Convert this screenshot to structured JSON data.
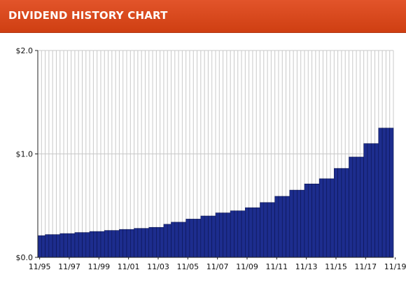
{
  "header": {
    "title": "DIVIDEND HISTORY CHART"
  },
  "colors": {
    "header": "#d9461a",
    "bar": "#1d2d8e",
    "bar_edge": "#0b1450",
    "grid": "#c8c8c8",
    "axis": "#222222"
  },
  "chart_data": {
    "type": "bar",
    "title": "",
    "xlabel": "",
    "ylabel": "",
    "ylim": [
      0,
      2.0
    ],
    "grid": true,
    "y_ticks": [
      "$2.0",
      "$1.0",
      "$0.0"
    ],
    "y_tick_values": [
      2.0,
      1.0,
      0.0
    ],
    "x_ticks": [
      "11/95",
      "11/97",
      "11/99",
      "11/01",
      "11/03",
      "11/05",
      "11/07",
      "11/09",
      "11/11",
      "11/13",
      "11/15",
      "11/17",
      "11/19"
    ],
    "x_tick_indices": [
      0,
      8,
      16,
      24,
      32,
      40,
      48,
      56,
      64,
      72,
      80,
      88,
      96
    ],
    "values": [
      0.21,
      0.21,
      0.22,
      0.22,
      0.22,
      0.22,
      0.23,
      0.23,
      0.23,
      0.23,
      0.24,
      0.24,
      0.24,
      0.24,
      0.25,
      0.25,
      0.25,
      0.25,
      0.26,
      0.26,
      0.26,
      0.26,
      0.27,
      0.27,
      0.27,
      0.27,
      0.28,
      0.28,
      0.28,
      0.28,
      0.29,
      0.29,
      0.29,
      0.29,
      0.32,
      0.32,
      0.34,
      0.34,
      0.34,
      0.34,
      0.37,
      0.37,
      0.37,
      0.37,
      0.4,
      0.4,
      0.4,
      0.4,
      0.43,
      0.43,
      0.43,
      0.43,
      0.45,
      0.45,
      0.45,
      0.45,
      0.48,
      0.48,
      0.48,
      0.48,
      0.53,
      0.53,
      0.53,
      0.53,
      0.59,
      0.59,
      0.59,
      0.59,
      0.65,
      0.65,
      0.65,
      0.65,
      0.71,
      0.71,
      0.71,
      0.71,
      0.76,
      0.76,
      0.76,
      0.76,
      0.86,
      0.86,
      0.86,
      0.86,
      0.97,
      0.97,
      0.97,
      0.97,
      1.1,
      1.1,
      1.1,
      1.1,
      1.25,
      1.25,
      1.25,
      1.25
    ]
  }
}
